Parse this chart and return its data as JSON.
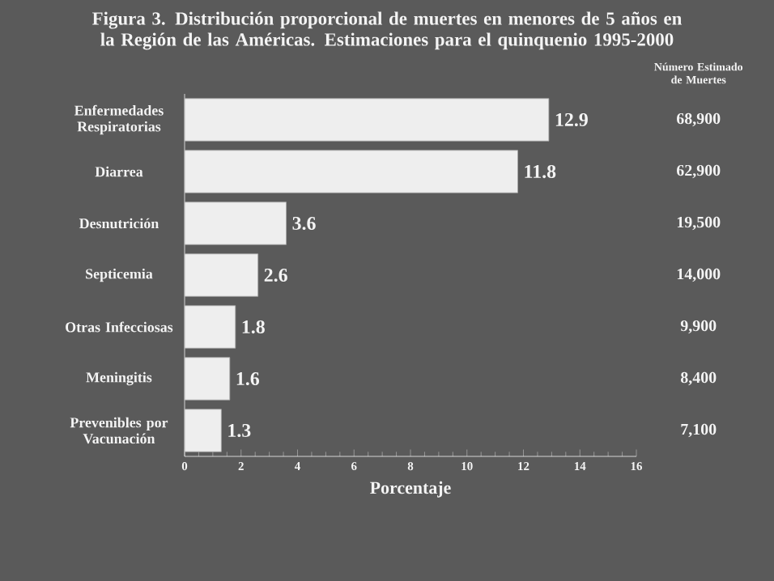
{
  "chart_data": {
    "type": "bar",
    "orientation": "horizontal",
    "title": "Figura 3. Distribución proporcional de muertes en menores de 5 años en la Región de las Américas. Estimaciones para el quinquenio 1995-2000",
    "xlabel": "Porcentaje",
    "categories": [
      "Enfermedades Respiratorias",
      "Diarrea",
      "Desnutrición",
      "Septicemia",
      "Otras Infecciosas",
      "Meningitis",
      "Prevenibles por Vacunación"
    ],
    "values": [
      12.9,
      11.8,
      3.6,
      2.6,
      1.8,
      1.6,
      1.3
    ],
    "color": "#eeeeee",
    "xlim": [
      0,
      16
    ],
    "xticks": [
      0,
      2,
      4,
      6,
      8,
      10,
      12,
      14,
      16
    ],
    "data_labels": true,
    "grid": false,
    "annotations": [
      "Número Estimado de Muertes",
      "68,900",
      "62,900",
      "19,500",
      "14,000",
      "9,900",
      "8,400",
      "7,100"
    ]
  }
}
